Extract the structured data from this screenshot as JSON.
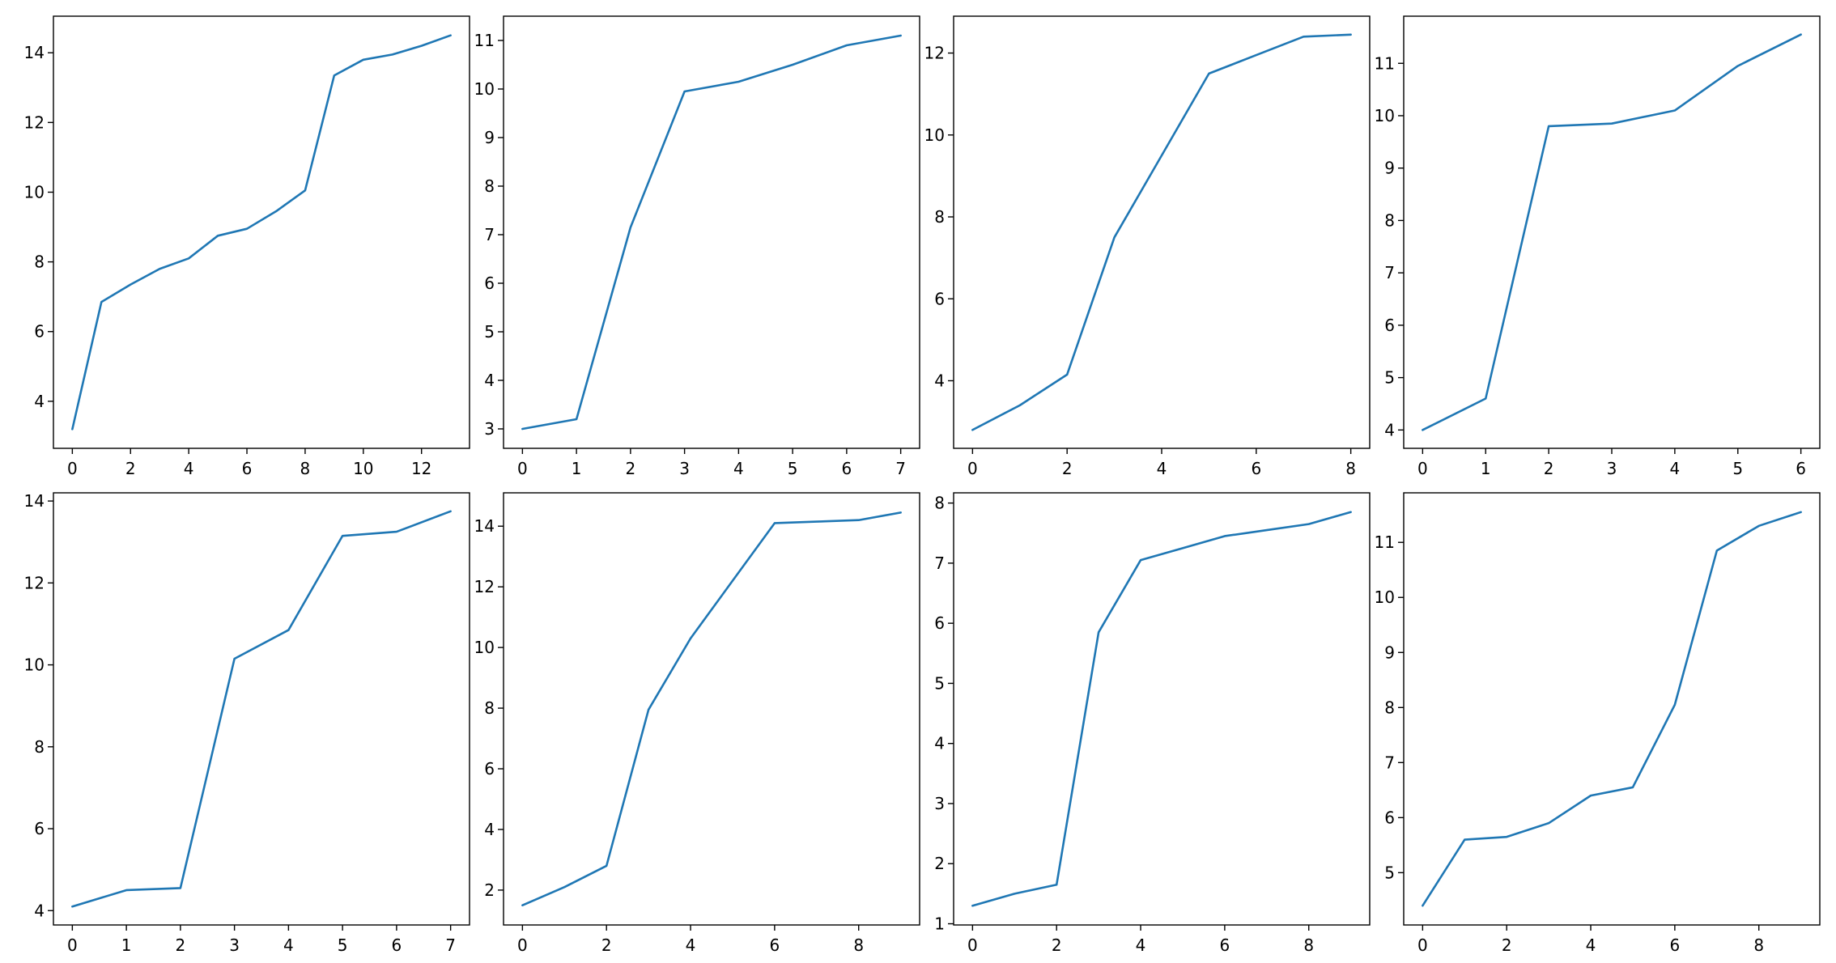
{
  "colors": {
    "line": "#1f77b4",
    "axes": "#000000",
    "background": "#ffffff"
  },
  "chart_data": [
    {
      "type": "line",
      "title": "",
      "xlabel": "",
      "ylabel": "",
      "grid": false,
      "x": [
        0,
        1,
        2,
        3,
        4,
        5,
        6,
        7,
        8,
        9,
        10,
        11,
        12,
        13
      ],
      "series": [
        {
          "values": [
            3.2,
            6.85,
            7.35,
            7.8,
            8.1,
            8.75,
            8.95,
            9.45,
            10.05,
            13.35,
            13.8,
            13.95,
            14.2,
            14.5
          ]
        }
      ],
      "xlim": [
        -0.65,
        13.65
      ],
      "ylim": [
        2.65,
        15.05
      ],
      "xticks": [
        0,
        2,
        4,
        6,
        8,
        10,
        12
      ],
      "xtick_labels": [
        "0",
        "2",
        "4",
        "6",
        "8",
        "10",
        "12"
      ],
      "yticks": [
        4,
        6,
        8,
        10,
        12,
        14
      ],
      "ytick_labels": [
        "4",
        "6",
        "8",
        "10",
        "12",
        "14"
      ]
    },
    {
      "type": "line",
      "title": "",
      "xlabel": "",
      "ylabel": "",
      "grid": false,
      "x": [
        0,
        1,
        2,
        3,
        4,
        5,
        6,
        7
      ],
      "series": [
        {
          "values": [
            3.0,
            3.2,
            7.15,
            9.95,
            10.15,
            10.5,
            10.9,
            11.1
          ]
        }
      ],
      "xlim": [
        -0.35,
        7.35
      ],
      "ylim": [
        2.6,
        11.5
      ],
      "xticks": [
        0,
        1,
        2,
        3,
        4,
        5,
        6,
        7
      ],
      "xtick_labels": [
        "0",
        "1",
        "2",
        "3",
        "4",
        "5",
        "6",
        "7"
      ],
      "yticks": [
        3,
        4,
        5,
        6,
        7,
        8,
        9,
        10,
        11
      ],
      "ytick_labels": [
        "3",
        "4",
        "5",
        "6",
        "7",
        "8",
        "9",
        "10",
        "11"
      ]
    },
    {
      "type": "line",
      "title": "",
      "xlabel": "",
      "ylabel": "",
      "grid": false,
      "x": [
        0,
        1,
        2,
        3,
        4,
        5,
        6,
        7,
        8
      ],
      "series": [
        {
          "values": [
            2.8,
            3.4,
            4.15,
            7.5,
            9.5,
            11.5,
            11.95,
            12.4,
            12.45
          ]
        }
      ],
      "xlim": [
        -0.4,
        8.4
      ],
      "ylim": [
        2.35,
        12.9
      ],
      "xticks": [
        0,
        2,
        4,
        6,
        8
      ],
      "xtick_labels": [
        "0",
        "2",
        "4",
        "6",
        "8"
      ],
      "yticks": [
        4,
        6,
        8,
        10,
        12
      ],
      "ytick_labels": [
        "4",
        "6",
        "8",
        "10",
        "12"
      ]
    },
    {
      "type": "line",
      "title": "",
      "xlabel": "",
      "ylabel": "",
      "grid": false,
      "x": [
        0,
        1,
        2,
        3,
        4,
        5,
        6
      ],
      "series": [
        {
          "values": [
            4.0,
            4.6,
            9.8,
            9.85,
            10.1,
            10.95,
            11.55
          ]
        }
      ],
      "xlim": [
        -0.3,
        6.3
      ],
      "ylim": [
        3.65,
        11.9
      ],
      "xticks": [
        0,
        1,
        2,
        3,
        4,
        5,
        6
      ],
      "xtick_labels": [
        "0",
        "1",
        "2",
        "3",
        "4",
        "5",
        "6"
      ],
      "yticks": [
        4,
        5,
        6,
        7,
        8,
        9,
        10,
        11
      ],
      "ytick_labels": [
        "4",
        "5",
        "6",
        "7",
        "8",
        "9",
        "10",
        "11"
      ]
    },
    {
      "type": "line",
      "title": "",
      "xlabel": "",
      "ylabel": "",
      "grid": false,
      "x": [
        0,
        1,
        2,
        3,
        4,
        5,
        6,
        7
      ],
      "series": [
        {
          "values": [
            4.1,
            4.5,
            4.55,
            10.15,
            10.85,
            13.15,
            13.25,
            13.75
          ]
        }
      ],
      "xlim": [
        -0.35,
        7.35
      ],
      "ylim": [
        3.65,
        14.2
      ],
      "xticks": [
        0,
        1,
        2,
        3,
        4,
        5,
        6,
        7
      ],
      "xtick_labels": [
        "0",
        "1",
        "2",
        "3",
        "4",
        "5",
        "6",
        "7"
      ],
      "yticks": [
        4,
        6,
        8,
        10,
        12,
        14
      ],
      "ytick_labels": [
        "4",
        "6",
        "8",
        "10",
        "12",
        "14"
      ]
    },
    {
      "type": "line",
      "title": "",
      "xlabel": "",
      "ylabel": "",
      "grid": false,
      "x": [
        0,
        1,
        2,
        3,
        4,
        5,
        6,
        7,
        8,
        9
      ],
      "series": [
        {
          "values": [
            1.5,
            2.1,
            2.8,
            7.95,
            10.3,
            12.2,
            14.1,
            14.15,
            14.2,
            14.45
          ]
        }
      ],
      "xlim": [
        -0.45,
        9.45
      ],
      "ylim": [
        0.85,
        15.1
      ],
      "xticks": [
        0,
        2,
        4,
        6,
        8
      ],
      "xtick_labels": [
        "0",
        "2",
        "4",
        "6",
        "8"
      ],
      "yticks": [
        2,
        4,
        6,
        8,
        10,
        12,
        14
      ],
      "ytick_labels": [
        "2",
        "4",
        "6",
        "8",
        "10",
        "12",
        "14"
      ]
    },
    {
      "type": "line",
      "title": "",
      "xlabel": "",
      "ylabel": "",
      "grid": false,
      "x": [
        0,
        1,
        2,
        3,
        4,
        5,
        6,
        7,
        8,
        9
      ],
      "series": [
        {
          "values": [
            1.3,
            1.5,
            1.65,
            5.85,
            7.05,
            7.25,
            7.45,
            7.55,
            7.65,
            7.85
          ]
        }
      ],
      "xlim": [
        -0.45,
        9.45
      ],
      "ylim": [
        0.98,
        8.17
      ],
      "xticks": [
        0,
        2,
        4,
        6,
        8
      ],
      "xtick_labels": [
        "0",
        "2",
        "4",
        "6",
        "8"
      ],
      "yticks": [
        1,
        2,
        3,
        4,
        5,
        6,
        7,
        8
      ],
      "ytick_labels": [
        "1",
        "2",
        "3",
        "4",
        "5",
        "6",
        "7",
        "8"
      ]
    },
    {
      "type": "line",
      "title": "",
      "xlabel": "",
      "ylabel": "",
      "grid": false,
      "x": [
        0,
        1,
        2,
        3,
        4,
        5,
        6,
        7,
        8,
        9
      ],
      "series": [
        {
          "values": [
            4.4,
            5.6,
            5.65,
            5.9,
            6.4,
            6.55,
            8.05,
            10.85,
            11.3,
            11.55
          ]
        }
      ],
      "xlim": [
        -0.45,
        9.45
      ],
      "ylim": [
        4.05,
        11.9
      ],
      "xticks": [
        0,
        2,
        4,
        6,
        8
      ],
      "xtick_labels": [
        "0",
        "2",
        "4",
        "6",
        "8"
      ],
      "yticks": [
        5,
        6,
        7,
        8,
        9,
        10,
        11
      ],
      "ytick_labels": [
        "5",
        "6",
        "7",
        "8",
        "9",
        "10",
        "11"
      ]
    }
  ]
}
